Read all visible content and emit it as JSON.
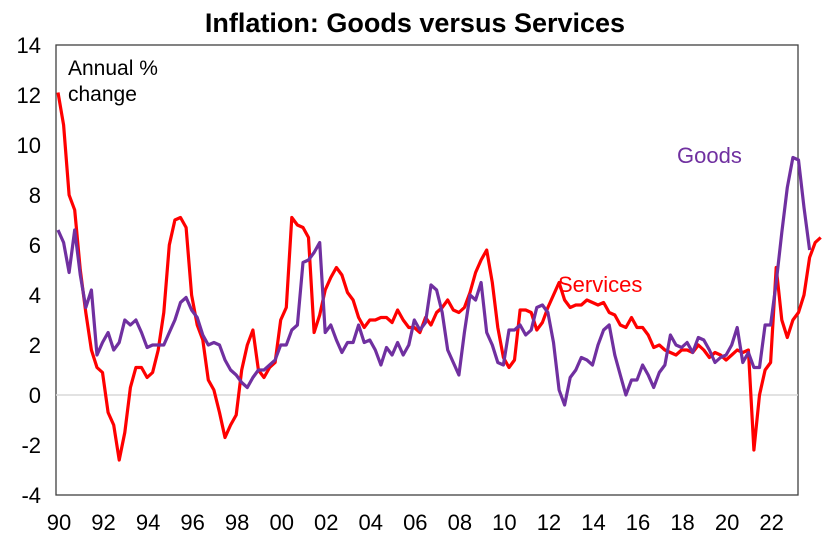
{
  "chart_data": {
    "type": "line",
    "title": "Inflation: Goods versus Services",
    "annotation": [
      "Annual %",
      "change"
    ],
    "xlabel": "",
    "ylabel": "",
    "ylim": [
      -4,
      14
    ],
    "yticks": [
      "14",
      "12",
      "10",
      "8",
      "6",
      "4",
      "2",
      "0",
      "-2",
      "-4"
    ],
    "ytick_values": [
      14,
      12,
      10,
      8,
      6,
      4,
      2,
      0,
      -2,
      -4
    ],
    "xticks": [
      "90",
      "92",
      "94",
      "96",
      "98",
      "00",
      "02",
      "04",
      "06",
      "08",
      "10",
      "12",
      "14",
      "16",
      "18",
      "20",
      "22"
    ],
    "xtick_years": [
      1990,
      1992,
      1994,
      1996,
      1998,
      2000,
      2002,
      2004,
      2006,
      2008,
      2010,
      2012,
      2014,
      2016,
      2018,
      2020,
      2022
    ],
    "xlim": [
      1990,
      2023.5
    ],
    "grid": false,
    "zero_line": true,
    "frequency": "quarterly",
    "start": 1990.0,
    "series": [
      {
        "name": "Services",
        "label": "Services",
        "color": "#ff0000",
        "values": [
          12.1,
          10.8,
          8.0,
          7.4,
          5.0,
          3.3,
          1.8,
          1.1,
          0.9,
          -0.7,
          -1.2,
          -2.6,
          -1.5,
          0.3,
          1.1,
          1.1,
          0.7,
          0.9,
          1.8,
          3.3,
          6.0,
          7.0,
          7.1,
          6.7,
          4.0,
          2.8,
          2.2,
          0.6,
          0.2,
          -0.7,
          -1.7,
          -1.2,
          -0.8,
          1.0,
          2.0,
          2.6,
          1.0,
          0.7,
          1.1,
          1.3,
          3.0,
          3.5,
          7.1,
          6.8,
          6.7,
          6.3,
          2.5,
          3.2,
          4.2,
          4.7,
          5.1,
          4.8,
          4.1,
          3.8,
          3.1,
          2.7,
          3.0,
          3.0,
          3.1,
          3.1,
          2.9,
          3.4,
          3.0,
          2.7,
          2.7,
          2.5,
          3.1,
          2.8,
          3.3,
          3.5,
          3.8,
          3.4,
          3.3,
          3.5,
          4.1,
          4.9,
          5.4,
          5.8,
          4.5,
          2.7,
          1.5,
          1.1,
          1.4,
          3.4,
          3.4,
          3.3,
          2.6,
          2.9,
          3.5,
          4.0,
          4.5,
          3.8,
          3.5,
          3.6,
          3.6,
          3.8,
          3.7,
          3.6,
          3.7,
          3.3,
          3.2,
          2.8,
          2.7,
          3.1,
          2.7,
          2.7,
          2.4,
          1.9,
          2.0,
          1.8,
          1.7,
          1.6,
          1.8,
          1.8,
          1.7,
          2.0,
          1.8,
          1.5,
          1.7,
          1.6,
          1.4,
          1.6,
          1.8,
          1.7,
          1.8,
          -2.2,
          0.0,
          1.0,
          1.3,
          5.1,
          3.0,
          2.3,
          3.0,
          3.3,
          4.0,
          5.5,
          6.1,
          6.3
        ]
      },
      {
        "name": "Goods",
        "label": "Goods",
        "color": "#7030a0",
        "values": [
          6.6,
          6.1,
          4.9,
          6.6,
          4.8,
          3.5,
          4.2,
          1.6,
          2.1,
          2.5,
          1.8,
          2.1,
          3.0,
          2.8,
          3.0,
          2.5,
          1.9,
          2.0,
          2.0,
          2.0,
          2.5,
          3.0,
          3.7,
          3.9,
          3.4,
          3.1,
          2.4,
          2.0,
          2.1,
          2.0,
          1.4,
          1.0,
          0.8,
          0.5,
          0.3,
          0.7,
          1.0,
          1.0,
          1.2,
          1.4,
          2.0,
          2.0,
          2.6,
          2.8,
          5.3,
          5.4,
          5.7,
          6.1,
          2.5,
          2.8,
          2.2,
          1.7,
          2.1,
          2.1,
          2.8,
          2.1,
          2.2,
          1.8,
          1.2,
          1.9,
          1.6,
          2.1,
          1.6,
          2.0,
          3.0,
          2.6,
          2.9,
          4.4,
          4.2,
          3.3,
          1.8,
          1.3,
          0.8,
          2.5,
          4.0,
          3.8,
          4.5,
          2.5,
          2.0,
          1.3,
          1.2,
          2.6,
          2.6,
          2.8,
          2.4,
          2.6,
          3.5,
          3.6,
          3.3,
          2.1,
          0.2,
          -0.4,
          0.7,
          1.0,
          1.5,
          1.4,
          1.2,
          2.0,
          2.6,
          2.8,
          1.6,
          0.8,
          0.0,
          0.6,
          0.6,
          1.2,
          0.8,
          0.3,
          0.9,
          1.2,
          2.4,
          2.0,
          1.9,
          2.1,
          1.7,
          2.3,
          2.2,
          1.8,
          1.3,
          1.5,
          1.6,
          2.0,
          2.7,
          1.3,
          1.7,
          1.1,
          1.1,
          2.8,
          2.8,
          4.5,
          6.5,
          8.3,
          9.5,
          9.4,
          7.5,
          5.8
        ]
      }
    ]
  }
}
